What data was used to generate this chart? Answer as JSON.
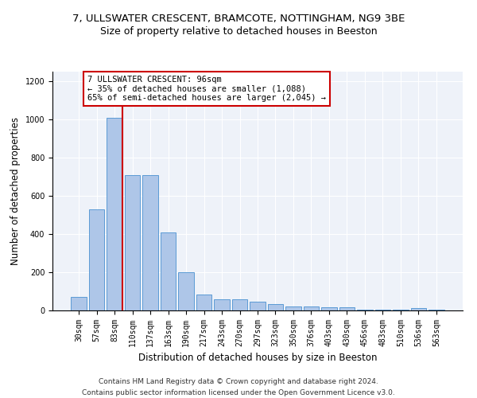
{
  "title_line1": "7, ULLSWATER CRESCENT, BRAMCOTE, NOTTINGHAM, NG9 3BE",
  "title_line2": "Size of property relative to detached houses in Beeston",
  "xlabel": "Distribution of detached houses by size in Beeston",
  "ylabel": "Number of detached properties",
  "categories": [
    "30sqm",
    "57sqm",
    "83sqm",
    "110sqm",
    "137sqm",
    "163sqm",
    "190sqm",
    "217sqm",
    "243sqm",
    "270sqm",
    "297sqm",
    "323sqm",
    "350sqm",
    "376sqm",
    "403sqm",
    "430sqm",
    "456sqm",
    "483sqm",
    "510sqm",
    "536sqm",
    "563sqm"
  ],
  "values": [
    70,
    530,
    1010,
    710,
    710,
    410,
    200,
    85,
    60,
    60,
    45,
    35,
    20,
    20,
    18,
    18,
    5,
    5,
    5,
    13,
    5
  ],
  "bar_color": "#aec6e8",
  "bar_edge_color": "#5b9bd5",
  "annotation_text": "7 ULLSWATER CRESCENT: 96sqm\n← 35% of detached houses are smaller (1,088)\n65% of semi-detached houses are larger (2,045) →",
  "annotation_box_color": "#ffffff",
  "annotation_box_edge": "#cc0000",
  "redline_index": 2,
  "redline_color": "#cc0000",
  "ylim": [
    0,
    1250
  ],
  "yticks": [
    0,
    200,
    400,
    600,
    800,
    1000,
    1200
  ],
  "footer_line1": "Contains HM Land Registry data © Crown copyright and database right 2024.",
  "footer_line2": "Contains public sector information licensed under the Open Government Licence v3.0.",
  "background_color": "#eef2f9",
  "title_fontsize": 9.5,
  "subtitle_fontsize": 9,
  "axis_label_fontsize": 8.5,
  "tick_fontsize": 7,
  "annotation_fontsize": 7.5,
  "footer_fontsize": 6.5
}
